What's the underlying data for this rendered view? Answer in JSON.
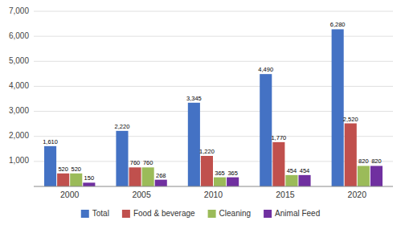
{
  "chart_data": {
    "type": "bar",
    "categories": [
      "2000",
      "2005",
      "2010",
      "2015",
      "2020"
    ],
    "series": [
      {
        "name": "Total",
        "color": "#4472C4",
        "values": [
          1610,
          2220,
          3345,
          4490,
          6280
        ],
        "value_labels": [
          "1,610",
          "2,220",
          "3,345",
          "4,490",
          "6,280"
        ]
      },
      {
        "name": "Food & beverage",
        "color": "#C0504D",
        "values": [
          520,
          760,
          1220,
          1770,
          2520
        ],
        "value_labels": [
          "520",
          "760",
          "1,220",
          "1,770",
          "2,520"
        ]
      },
      {
        "name": "Cleaning",
        "color": "#9BBB59",
        "values": [
          520,
          760,
          365,
          454,
          820
        ],
        "value_labels": [
          "520",
          "760",
          "365",
          "454",
          "820"
        ]
      },
      {
        "name": "Animal Feed",
        "color": "#7030A0",
        "values": [
          150,
          268,
          365,
          454,
          820
        ],
        "value_labels": [
          "150",
          "268",
          "365",
          "454",
          "820"
        ]
      }
    ],
    "ylim": [
      0,
      7000
    ],
    "yticks": [
      {
        "value": 1000,
        "label": "1,000"
      },
      {
        "value": 2000,
        "label": "2,000"
      },
      {
        "value": 3000,
        "label": "3,000"
      },
      {
        "value": 4000,
        "label": "4,000"
      },
      {
        "value": 5000,
        "label": "5,000"
      },
      {
        "value": 6000,
        "label": "6,000"
      },
      {
        "value": 7000,
        "label": "7,000"
      }
    ],
    "grid": true,
    "legend": "bottom",
    "data_labels": true
  }
}
